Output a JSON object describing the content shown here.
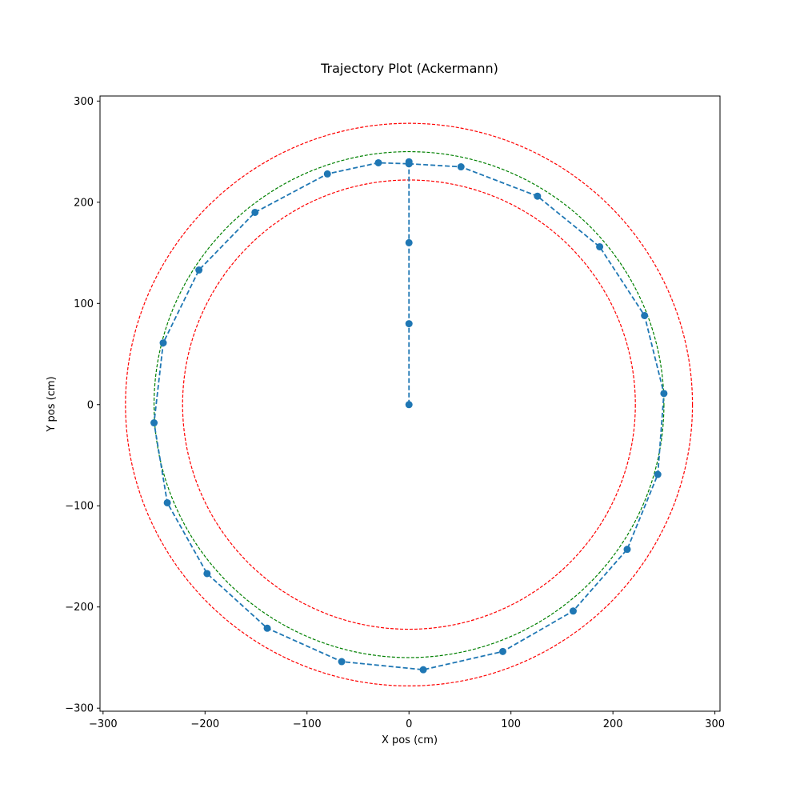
{
  "chart_data": {
    "type": "scatter",
    "title": "Trajectory Plot (Ackermann)",
    "xlabel": "X pos (cm)",
    "ylabel": "Y pos (cm)",
    "xlim": [
      -303,
      305
    ],
    "ylim": [
      -303,
      305
    ],
    "xticks": [
      -300,
      -200,
      -100,
      0,
      100,
      200,
      300
    ],
    "yticks": [
      -300,
      -200,
      -100,
      0,
      100,
      200,
      300
    ],
    "grid": false,
    "reference_circles": [
      {
        "radius": 278,
        "color": "#ff0000",
        "style": "dashed"
      },
      {
        "radius": 250,
        "color": "#008000",
        "style": "dashed"
      },
      {
        "radius": 222,
        "color": "#ff0000",
        "style": "dashed"
      }
    ],
    "series": [
      {
        "color": "#1f77b4",
        "line_style": "dashed",
        "marker": "circle",
        "points": [
          [
            0,
            0
          ],
          [
            0,
            80
          ],
          [
            0,
            160
          ],
          [
            0,
            240
          ],
          [
            0,
            238
          ],
          [
            51,
            235
          ],
          [
            126,
            206
          ],
          [
            187,
            156
          ],
          [
            231,
            88
          ],
          [
            250,
            11
          ],
          [
            244,
            -69
          ],
          [
            214,
            -143
          ],
          [
            161,
            -204
          ],
          [
            92,
            -244
          ],
          [
            14,
            -262
          ],
          [
            -66,
            -254
          ],
          [
            -139,
            -221
          ],
          [
            -198,
            -167
          ],
          [
            -237,
            -97
          ],
          [
            -250,
            -18
          ],
          [
            -241,
            61
          ],
          [
            -206,
            133
          ],
          [
            -151,
            190
          ],
          [
            -80,
            228
          ],
          [
            -30,
            239
          ],
          [
            0,
            238
          ]
        ]
      }
    ]
  }
}
